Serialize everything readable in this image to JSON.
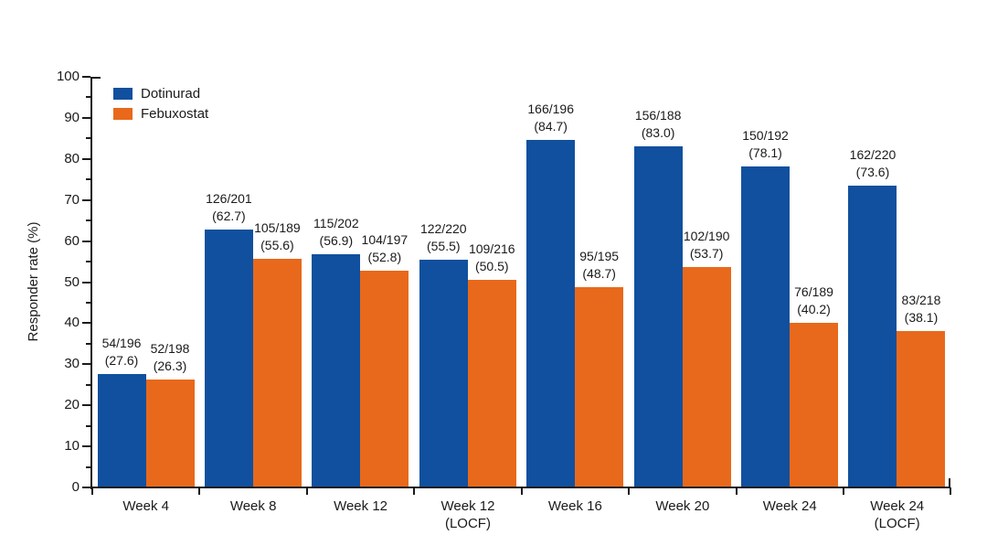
{
  "chart_data": {
    "type": "bar",
    "title": "",
    "ylabel": "Responder rate (%)",
    "xlabel": "",
    "ylim": [
      0,
      100
    ],
    "ytick_step": 10,
    "ytick_minor_step": 5,
    "ytick_labels": [
      "0",
      "10",
      "20",
      "30",
      "40",
      "50",
      "60",
      "70",
      "80",
      "90",
      "100"
    ],
    "grid": false,
    "legend_position": "top-left-inside",
    "colors": {
      "dotinurad_blue": "#11509E",
      "febuxostat_orange": "#E8691B",
      "text": "#1A1A1A",
      "axis": "#1A1A1A",
      "background": "#FFFFFF"
    },
    "legend": [
      {
        "name": "Dotinurad",
        "color": "#11509E"
      },
      {
        "name": "Febuxostat",
        "color": "#E8691B"
      }
    ],
    "categories": [
      {
        "label": "Week 4",
        "sublabel": ""
      },
      {
        "label": "Week 8",
        "sublabel": ""
      },
      {
        "label": "Week 12",
        "sublabel": ""
      },
      {
        "label": "Week 12",
        "sublabel": "(LOCF)"
      },
      {
        "label": "Week 16",
        "sublabel": ""
      },
      {
        "label": "Week 20",
        "sublabel": ""
      },
      {
        "label": "Week 24",
        "sublabel": ""
      },
      {
        "label": "Week 24",
        "sublabel": "(LOCF)"
      }
    ],
    "series": [
      {
        "name": "Dotinurad",
        "color": "#11509E",
        "values": [
          27.6,
          62.7,
          56.9,
          55.5,
          84.7,
          83.0,
          78.1,
          73.6
        ],
        "count_labels": [
          "54/196",
          "126/201",
          "115/202",
          "122/220",
          "166/196",
          "156/188",
          "150/192",
          "162/220"
        ],
        "pct_labels": [
          "(27.6)",
          "(62.7)",
          "(56.9)",
          "(55.5)",
          "(84.7)",
          "(83.0)",
          "(78.1)",
          "(73.6)"
        ]
      },
      {
        "name": "Febuxostat",
        "color": "#E8691B",
        "values": [
          26.3,
          55.6,
          52.8,
          50.5,
          48.7,
          53.7,
          40.2,
          38.1
        ],
        "count_labels": [
          "52/198",
          "105/189",
          "104/197",
          "109/216",
          "95/195",
          "102/190",
          "76/189",
          "83/218"
        ],
        "pct_labels": [
          "(26.3)",
          "(55.6)",
          "(52.8)",
          "(50.5)",
          "(48.7)",
          "(53.7)",
          "(40.2)",
          "(38.1)"
        ]
      }
    ]
  }
}
